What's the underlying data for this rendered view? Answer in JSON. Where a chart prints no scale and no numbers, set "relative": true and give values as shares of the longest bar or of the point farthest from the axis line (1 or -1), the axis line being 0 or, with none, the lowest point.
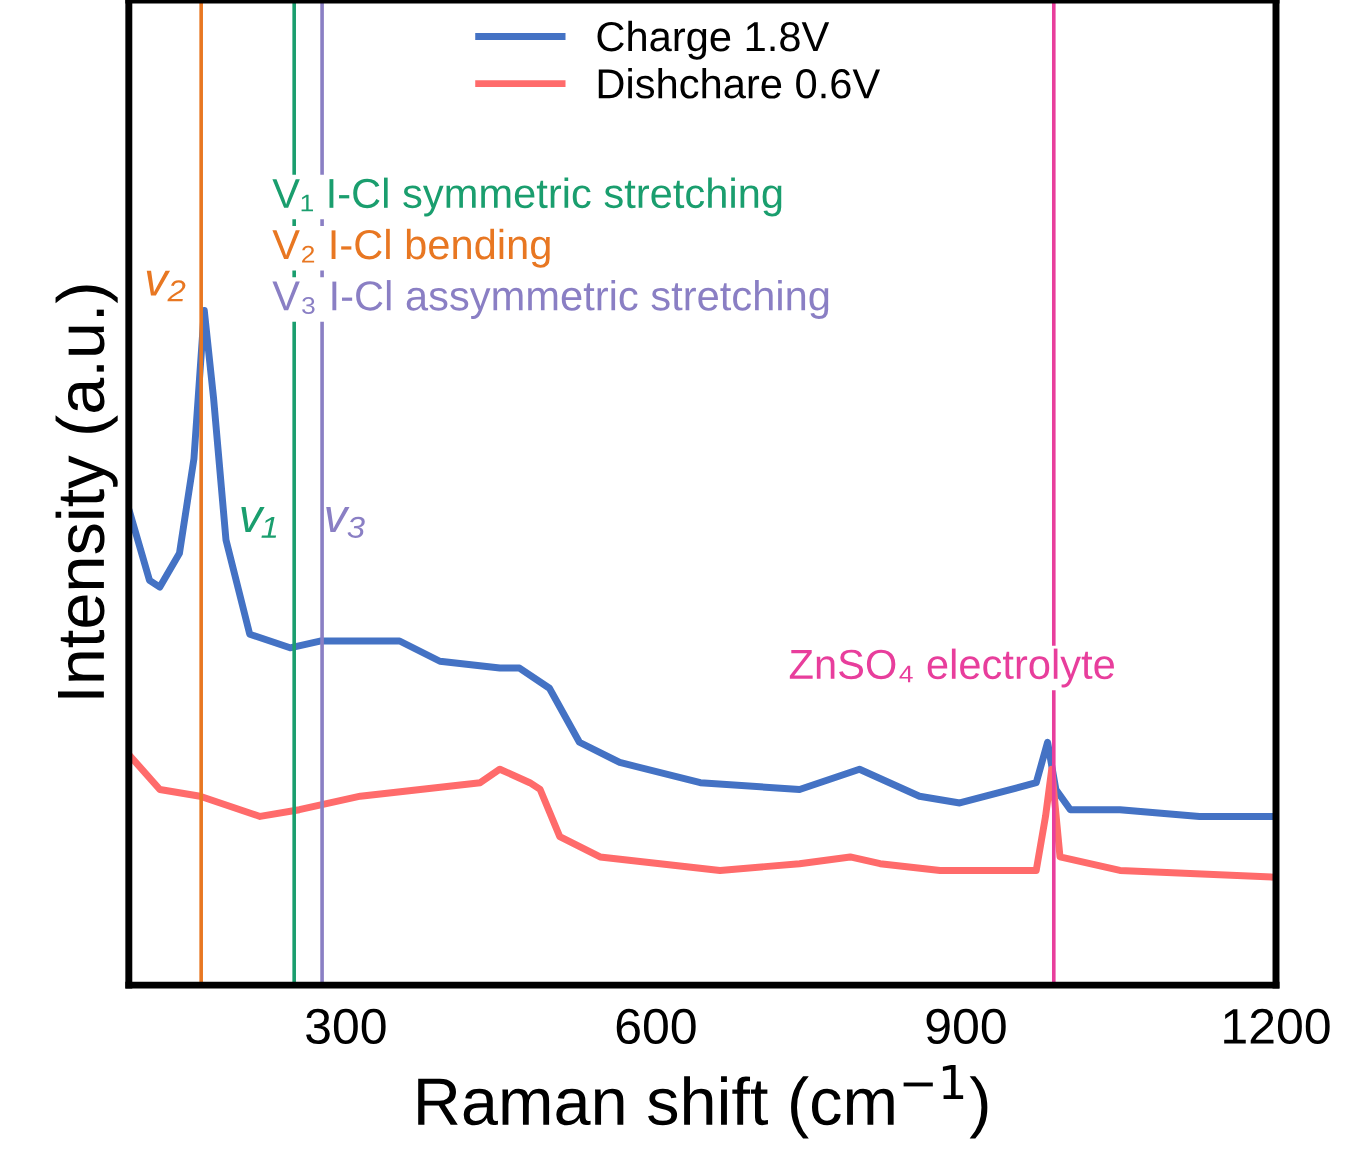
{
  "chart_data": {
    "type": "line",
    "relative": true,
    "xlabel": "Raman shift (cm$^{−1}$)",
    "ylabel": "Intensity (a.u.)",
    "xlim": [
      90,
      1200
    ],
    "xticks": [
      300,
      600,
      900,
      1200
    ],
    "legend": "top",
    "grid": false,
    "series": [
      {
        "name": "Charge 1.8V",
        "color": "#4472c4",
        "x": [
          91,
          110,
          120,
          139,
          153,
          163,
          172,
          184,
          207,
          246,
          275,
          314,
          352,
          391,
          449,
          468,
          497,
          526,
          565,
          643,
          739,
          797,
          855,
          894,
          968,
          979,
          987,
          1001,
          1049,
          1126,
          1200
        ],
        "values": [
          0.7,
          0.6,
          0.59,
          0.64,
          0.78,
          1.0,
          0.87,
          0.66,
          0.52,
          0.5,
          0.51,
          0.51,
          0.51,
          0.48,
          0.47,
          0.47,
          0.44,
          0.36,
          0.33,
          0.3,
          0.29,
          0.32,
          0.28,
          0.27,
          0.3,
          0.36,
          0.29,
          0.26,
          0.26,
          0.25,
          0.25
        ]
      },
      {
        "name": "Dishchare 0.6V",
        "color": "#ff6b6b",
        "x": [
          91,
          120,
          159,
          217,
          255,
          314,
          372,
          430,
          449,
          478,
          488,
          507,
          546,
          604,
          662,
          739,
          788,
          817,
          875,
          968,
          977,
          983,
          991,
          1049,
          1200
        ],
        "values": [
          0.34,
          0.29,
          0.28,
          0.25,
          0.26,
          0.28,
          0.29,
          0.3,
          0.32,
          0.3,
          0.29,
          0.22,
          0.19,
          0.18,
          0.17,
          0.18,
          0.19,
          0.18,
          0.17,
          0.17,
          0.25,
          0.32,
          0.19,
          0.17,
          0.16
        ]
      }
    ],
    "ref_lines": [
      {
        "axis": "x",
        "value": 250,
        "label": "V₁ I-Cl symmetric stretching",
        "color": "#1a9e6e"
      },
      {
        "axis": "x",
        "value": 160,
        "label": "V₂ I-Cl bending",
        "color": "#e87722"
      },
      {
        "axis": "x",
        "value": 277,
        "label": "V₃ I-Cl assymmetric stretching",
        "color": "#8a7fc4"
      },
      {
        "axis": "x",
        "value": 985,
        "label": "ZnSO₄ electrolyte",
        "color": "#e83e9c"
      }
    ],
    "annotations": [
      "v₁",
      "v₂",
      "v₃"
    ]
  }
}
